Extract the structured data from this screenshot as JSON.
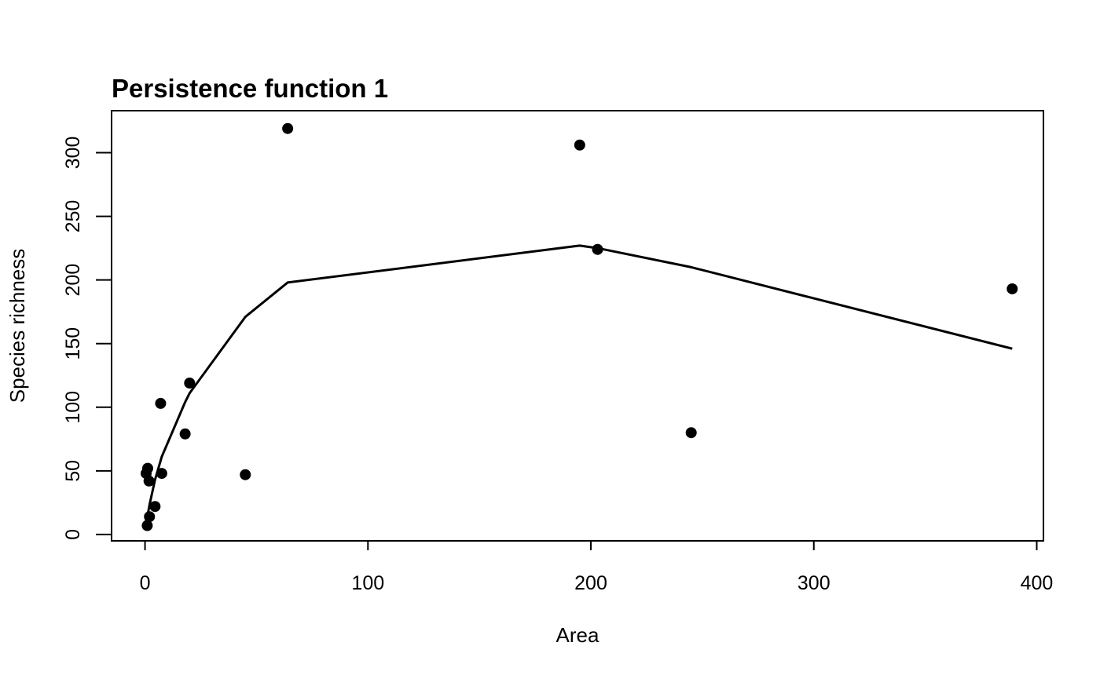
{
  "chart_data": {
    "type": "scatter",
    "title": "Persistence function 1",
    "xlabel": "Area",
    "ylabel": "Species richness",
    "xlim": [
      -15,
      403
    ],
    "ylim": [
      -5,
      333
    ],
    "xticks": [
      0,
      100,
      200,
      300,
      400
    ],
    "yticks": [
      0,
      50,
      100,
      150,
      200,
      250,
      300
    ],
    "grid": false,
    "colors": {
      "points": "#000000",
      "line": "#000000",
      "frame": "#000000"
    },
    "points": {
      "x": [
        0.5,
        1.0,
        1.2,
        1.8,
        2.0,
        4.5,
        7.0,
        7.5,
        18.0,
        20.0,
        45.0,
        64.0,
        195.0,
        203.0,
        245.0,
        389.0
      ],
      "y": [
        48,
        7,
        52,
        42,
        14,
        22,
        103,
        48,
        79,
        119,
        47,
        319,
        306,
        224,
        80,
        193
      ]
    },
    "fit_line": {
      "x": [
        0.5,
        1.0,
        1.2,
        1.8,
        2.0,
        4.5,
        7.0,
        7.5,
        18.0,
        20.0,
        45.0,
        64.0,
        195.0,
        203.0,
        245.0,
        389.0
      ],
      "y": [
        10,
        14,
        16,
        21,
        23,
        43,
        58,
        61,
        104,
        111,
        171,
        198,
        227,
        225,
        210,
        146
      ]
    }
  }
}
